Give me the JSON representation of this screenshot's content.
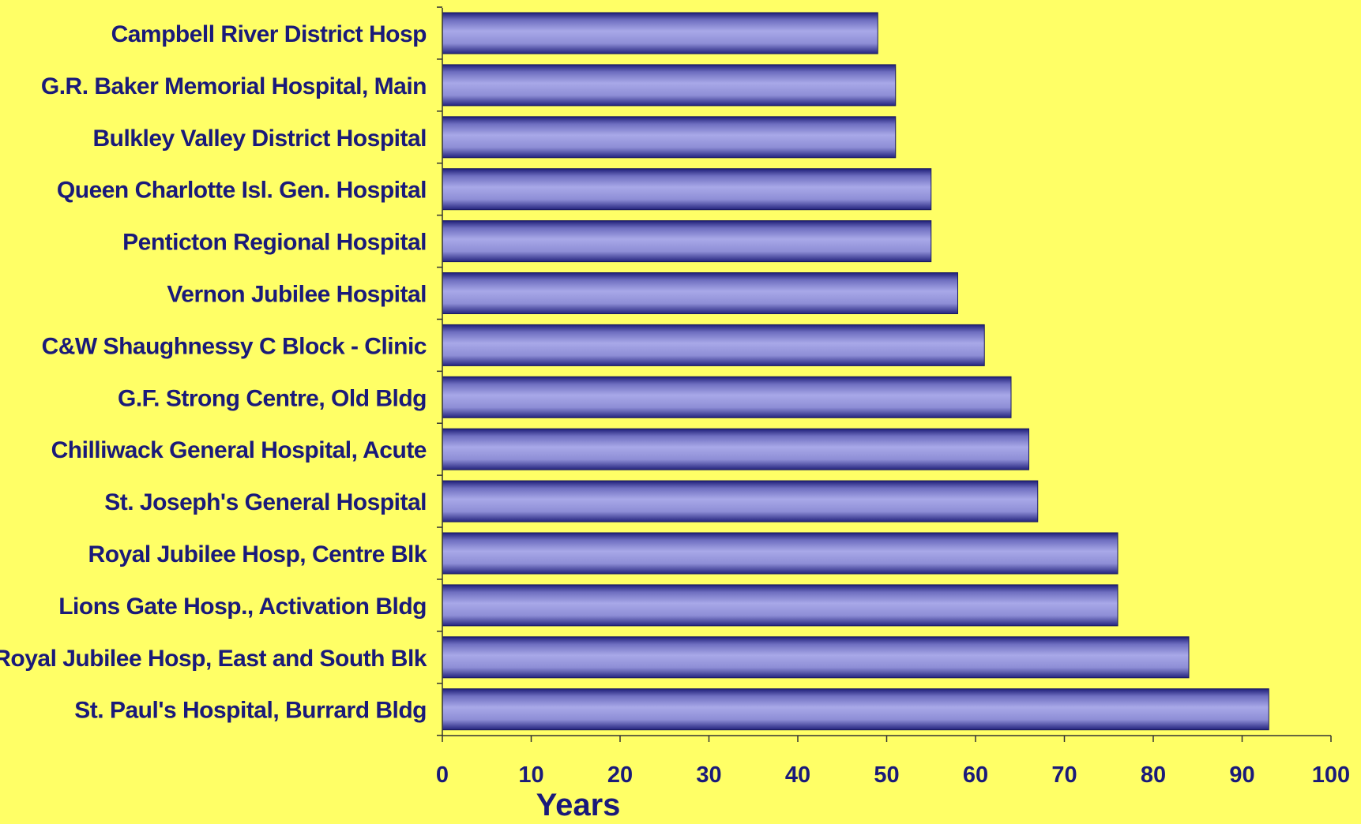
{
  "chart_data": {
    "type": "bar",
    "orientation": "horizontal",
    "title": "",
    "xlabel": "Years",
    "ylabel": "",
    "xlim": [
      0,
      100
    ],
    "xticks": [
      0,
      10,
      20,
      30,
      40,
      50,
      60,
      70,
      80,
      90,
      100
    ],
    "grid": false,
    "legend": "none",
    "categories": [
      "Campbell River District Hosp",
      "G.R. Baker Memorial Hospital, Main",
      "Bulkley Valley District Hospital",
      "Queen Charlotte Isl. Gen. Hospital",
      "Penticton Regional Hospital",
      "Vernon Jubilee Hospital",
      "C&W Shaughnessy C Block - Clinic",
      "G.F. Strong Centre, Old Bldg",
      "Chilliwack General Hospital, Acute",
      "St. Joseph's General Hospital",
      "Royal Jubilee Hosp, Centre Blk",
      "Lions Gate Hosp., Activation Bldg",
      "Royal Jubilee Hosp, East and South Blk",
      "St. Paul's Hospital, Burrard Bldg"
    ],
    "values": [
      49,
      51,
      51,
      55,
      55,
      58,
      61,
      64,
      66,
      67,
      76,
      76,
      84,
      93
    ]
  },
  "colors": {
    "background": "#FFFF66",
    "bar_light": "#A5A5E6",
    "bar_mid": "#8888D0",
    "bar_dark": "#1E1E78",
    "text": "#1a1a7a",
    "axis": "#333333"
  }
}
